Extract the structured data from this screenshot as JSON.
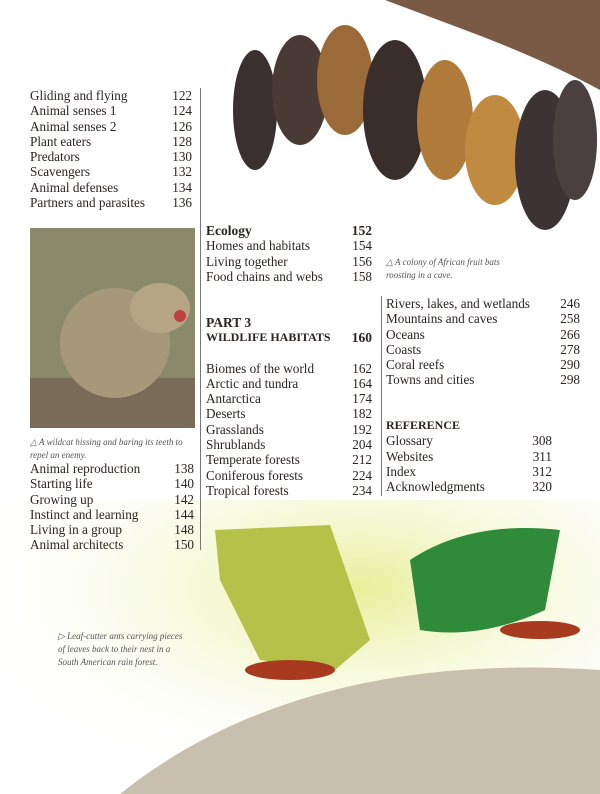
{
  "left_top": [
    [
      "Gliding and flying",
      "122"
    ],
    [
      "Animal senses 1",
      "124"
    ],
    [
      "Animal senses 2",
      "126"
    ],
    [
      "Plant eaters",
      "128"
    ],
    [
      "Predators",
      "130"
    ],
    [
      "Scavengers",
      "132"
    ],
    [
      "Animal defenses",
      "134"
    ],
    [
      "Partners and parasites",
      "136"
    ]
  ],
  "wildcat_caption": "△ A wildcat hissing and baring its teeth to repel an enemy.",
  "left_bottom": [
    [
      "Animal reproduction",
      "138"
    ],
    [
      "Starting life",
      "140"
    ],
    [
      "Growing up",
      "142"
    ],
    [
      "Instinct and learning",
      "144"
    ],
    [
      "Living in a group",
      "148"
    ],
    [
      "Animal architects",
      "150"
    ]
  ],
  "ecology": {
    "title": "Ecology",
    "page": "152",
    "items": [
      [
        "Homes and habitats",
        "154"
      ],
      [
        "Living together",
        "156"
      ],
      [
        "Food chains and webs",
        "158"
      ]
    ]
  },
  "part3": {
    "label": "PART 3",
    "title": "WILDLIFE HABITATS",
    "page": "160",
    "items": [
      [
        "Biomes of the world",
        "162"
      ],
      [
        "Arctic and tundra",
        "164"
      ],
      [
        "Antarctica",
        "174"
      ],
      [
        "Deserts",
        "182"
      ],
      [
        "Grasslands",
        "192"
      ],
      [
        "Shrublands",
        "204"
      ],
      [
        "Temperate forests",
        "212"
      ],
      [
        "Coniferous forests",
        "224"
      ],
      [
        "Tropical forests",
        "234"
      ]
    ]
  },
  "bats_caption": "△ A colony of African fruit bats roosting in a cave.",
  "right_items": [
    [
      "Rivers, lakes, and wetlands",
      "246"
    ],
    [
      "Mountains and caves",
      "258"
    ],
    [
      "Oceans",
      "266"
    ],
    [
      "Coasts",
      "278"
    ],
    [
      "Coral reefs",
      "290"
    ],
    [
      "Towns and cities",
      "298"
    ]
  ],
  "reference": {
    "title": "REFERENCE",
    "items": [
      [
        "Glossary",
        "308"
      ],
      [
        "Websites",
        "311"
      ],
      [
        "Index",
        "312"
      ],
      [
        "Acknowledgments",
        "320"
      ]
    ]
  },
  "ants_caption": "▷ Leaf-cutter ants carrying pieces of leaves back to their nest in a South American rain forest."
}
